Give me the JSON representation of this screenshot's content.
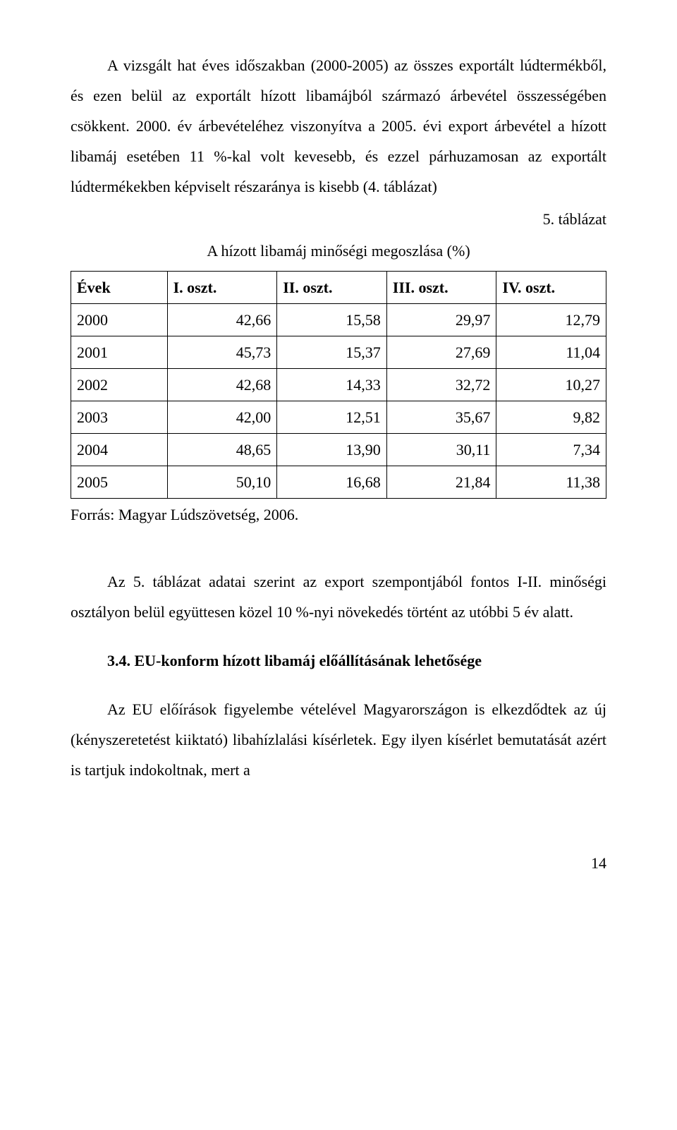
{
  "para1": "A vizsgált hat éves időszakban (2000-2005) az összes exportált lúdtermékből, és ezen belül az exportált hízott libamájból származó árbevétel összességében csökkent. 2000. év árbevételéhez viszonyítva a 2005. évi export árbevétel a hízott libamáj esetében 11 %-kal volt kevesebb, és ezzel párhuzamosan az exportált lúdtermékekben képviselt részaránya is kisebb (4. táblázat)",
  "table": {
    "number_label": "5.   táblázat",
    "title": "A hízott libamáj minőségi megoszlása (%)",
    "columns": [
      "Évek",
      "I. oszt.",
      "II. oszt.",
      "III. oszt.",
      "IV. oszt."
    ],
    "rows": [
      {
        "cells": [
          "2000",
          "42,66",
          "15,58",
          "29,97",
          "12,79"
        ]
      },
      {
        "cells": [
          "2001",
          "45,73",
          "15,37",
          "27,69",
          "11,04"
        ]
      },
      {
        "cells": [
          "2002",
          "42,68",
          "14,33",
          "32,72",
          "10,27"
        ]
      },
      {
        "cells": [
          "2003",
          "42,00",
          "12,51",
          "35,67",
          "9,82"
        ]
      },
      {
        "cells": [
          "2004",
          "48,65",
          "13,90",
          "30,11",
          "7,34"
        ]
      },
      {
        "cells": [
          "2005",
          "50,10",
          "16,68",
          "21,84",
          "11,38"
        ]
      }
    ],
    "source": "Forrás: Magyar Lúdszövetség, 2006.",
    "col_widths": [
      "18%",
      "20.5%",
      "20.5%",
      "20.5%",
      "20.5%"
    ]
  },
  "para2": "Az 5. táblázat adatai szerint az export szempontjából fontos I-II. minőségi osztályon belül együttesen közel 10 %-nyi növekedés történt az utóbbi 5 év alatt.",
  "subsection_heading": "3.4. EU-konform hízott libamáj előállításának lehetősége",
  "para3": "Az EU előírások figyelembe vételével Magyarországon is elkezdődtek az új (kényszeretetést kiiktató) libahízlalási kísérletek. Egy ilyen kísérlet bemutatását azért is tartjuk indokoltnak, mert a",
  "page_number": "14"
}
